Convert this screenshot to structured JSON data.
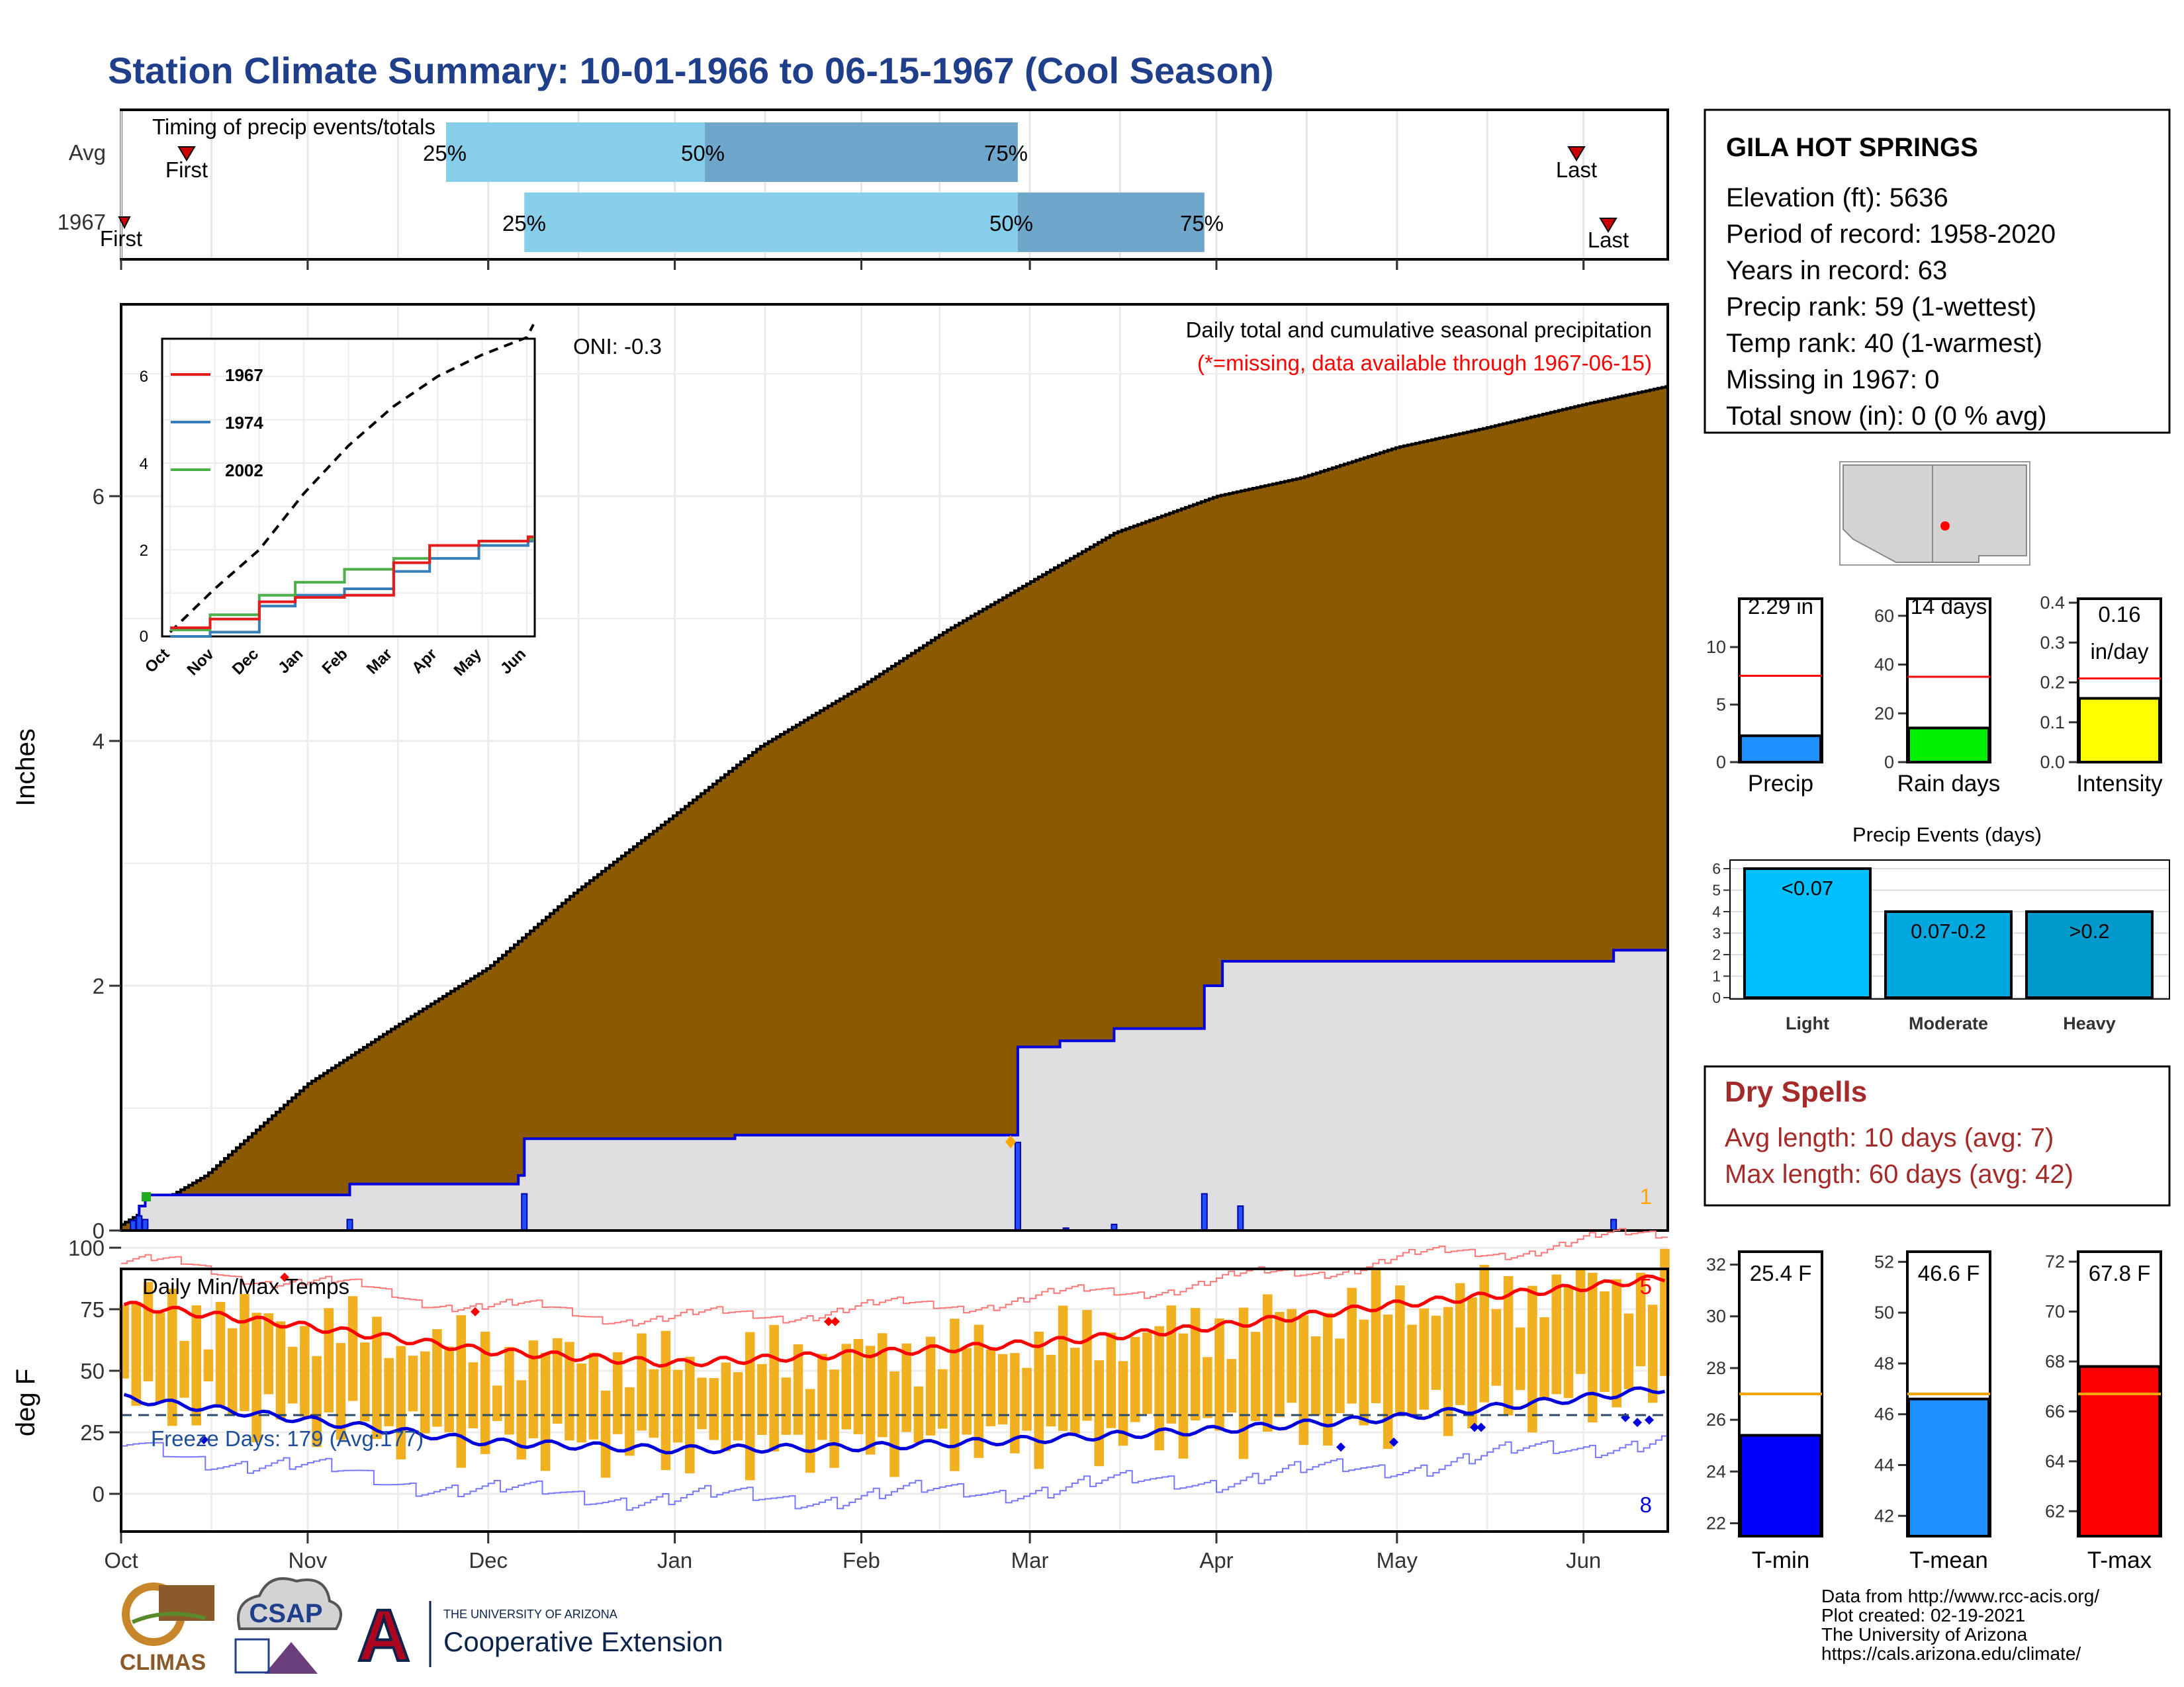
{
  "title": "Station Climate Summary: 10-01-1966 to 06-15-1967 (Cool Season)",
  "colors": {
    "title": "#1f3f8a",
    "precip_fill": "#8b5a00",
    "light_blue": "#87ceeb",
    "steel_blue": "#6fa6cc",
    "bar_orange": "#f0b020",
    "tmax": "#ff0000",
    "tmin": "#0000dd",
    "avg_line": "#ffa500"
  },
  "timing": {
    "label": "Timing of precip events/totals",
    "rows": [
      "Avg",
      "1967"
    ],
    "avg": {
      "first": "First",
      "last": "Last",
      "p25": "25%",
      "p50": "50%",
      "p75": "75%"
    },
    "y1967": {
      "first": "First",
      "last": "Last",
      "p25": "25%",
      "p50": "50%",
      "p75": "75%"
    }
  },
  "months": [
    "Oct",
    "Nov",
    "Dec",
    "Jan",
    "Feb",
    "Mar",
    "Apr",
    "May",
    "Jun"
  ],
  "precip_panel": {
    "ylabel": "Inches",
    "yticks": [
      "0",
      "2",
      "4",
      "6"
    ],
    "title_line1": "Daily total and cumulative seasonal precipitation",
    "title_line2": "(*=missing, data available through 1967-06-15)",
    "oni": "ONI: -0.3",
    "corner_count": "1"
  },
  "inset": {
    "yticks": [
      "0",
      "2",
      "4",
      "6"
    ],
    "months": [
      "Oct",
      "Nov",
      "Dec",
      "Jan",
      "Feb",
      "Mar",
      "Apr",
      "May",
      "Jun"
    ],
    "legend": [
      {
        "label": "1967",
        "color": "#e41a1c"
      },
      {
        "label": "1974",
        "color": "#377eb8"
      },
      {
        "label": "2002",
        "color": "#4daf4a"
      }
    ]
  },
  "temp_panel": {
    "ylabel": "deg F",
    "yticks": [
      "0",
      "25",
      "50",
      "75",
      "100"
    ],
    "title": "Daily Min/Max Temps",
    "freeze": "Freeze Days: 179 (Avg:177)",
    "max_count": "5",
    "min_count": "8"
  },
  "station": {
    "name": "GILA HOT SPRINGS",
    "lines": [
      "Elevation (ft): 5636",
      "Period of record: 1958-2020",
      "Years in record: 63",
      "Precip rank: 59 (1-wettest)",
      "Temp rank: 40 (1-warmest)",
      "Missing in 1967: 0",
      "Total snow (in): 0 (0 % avg)"
    ]
  },
  "mini_bars": [
    {
      "label": "Precip",
      "value_text": "2.29 in",
      "yticks": [
        "0",
        "5",
        "10"
      ],
      "color": "#1e90ff"
    },
    {
      "label": "Rain days",
      "value_text": "14 days",
      "yticks": [
        "0",
        "20",
        "40",
        "60"
      ],
      "color": "#00ee00"
    },
    {
      "label": "Intensity",
      "value_text": "0.16",
      "value_text2": "in/day",
      "yticks": [
        "0.0",
        "0.1",
        "0.2",
        "0.3",
        "0.4"
      ],
      "color": "#ffff00"
    }
  ],
  "events": {
    "title": "Precip Events (days)",
    "yticks": [
      "0",
      "1",
      "2",
      "3",
      "4",
      "5",
      "6"
    ],
    "bars": [
      {
        "label": "Light",
        "value_text": "<0.07",
        "color": "#00bfff"
      },
      {
        "label": "Moderate",
        "value_text": "0.07-0.2",
        "color": "#00a8e0"
      },
      {
        "label": "Heavy",
        "value_text": ">0.2",
        "color": "#0099cc"
      }
    ]
  },
  "dry_spells": {
    "title": "Dry Spells",
    "avg": "Avg length: 10 days (avg: 7)",
    "max": "Max length: 60 days (avg: 42)"
  },
  "temp_bars": [
    {
      "label": "T-min",
      "value_text": "25.4 F",
      "yticks": [
        "22",
        "24",
        "26",
        "28",
        "30",
        "32"
      ],
      "color": "#0000ff"
    },
    {
      "label": "T-mean",
      "value_text": "46.6 F",
      "yticks": [
        "42",
        "44",
        "46",
        "48",
        "50",
        "52"
      ],
      "color": "#1e90ff"
    },
    {
      "label": "T-max",
      "value_text": "67.8 F",
      "yticks": [
        "62",
        "64",
        "66",
        "68",
        "70",
        "72"
      ],
      "color": "#ff0000"
    }
  ],
  "credits": [
    "Data from http://www.rcc-acis.org/",
    "Plot created: 02-19-2021",
    "The University of Arizona",
    "https://cals.arizona.edu/climate/"
  ],
  "logos": {
    "climas": "CLIMAS",
    "csap": "CSAP",
    "ua_small": "THE UNIVERSITY OF ARIZONA",
    "ua_big": "Cooperative Extension"
  },
  "chart_data": [
    {
      "type": "bar",
      "title": "Timing of precip events/totals",
      "categories": [
        "Avg",
        "1967"
      ],
      "x_axis": "date",
      "series": [
        {
          "name": "Avg",
          "first": "1966-10-12",
          "p25": "1966-11-24",
          "p50": "1967-01-06",
          "p75": "1967-02-27",
          "last": "1967-06-01"
        },
        {
          "name": "1967",
          "first": "1966-10-01",
          "p25": "1966-12-07",
          "p50": "1967-02-27",
          "p75": "1967-03-30",
          "last": "1967-06-06"
        }
      ]
    },
    {
      "type": "area",
      "title": "Daily total and cumulative seasonal precipitation",
      "ylabel": "Inches",
      "xlim": [
        "1966-10-01",
        "1967-06-15"
      ],
      "ylim": [
        0,
        7.5
      ],
      "series": [
        {
          "name": "Avg cumulative",
          "x": [
            "1966-10-01",
            "1966-10-15",
            "1966-11-01",
            "1966-11-15",
            "1966-12-01",
            "1966-12-15",
            "1967-01-01",
            "1967-01-15",
            "1967-02-01",
            "1967-02-15",
            "1967-03-01",
            "1967-03-15",
            "1967-04-01",
            "1967-04-15",
            "1967-05-01",
            "1967-05-15",
            "1967-06-01",
            "1967-06-15"
          ],
          "y": [
            0.05,
            0.45,
            1.2,
            1.65,
            2.15,
            2.75,
            3.4,
            3.95,
            4.45,
            4.9,
            5.3,
            5.7,
            6.0,
            6.15,
            6.4,
            6.55,
            6.75,
            6.9
          ]
        },
        {
          "name": "1967 cumulative",
          "x": [
            "1966-10-01",
            "1966-10-03",
            "1966-10-04",
            "1966-10-05",
            "1966-11-08",
            "1966-12-06",
            "1966-12-07",
            "1967-01-11",
            "1967-02-27",
            "1967-03-06",
            "1967-03-15",
            "1967-03-30",
            "1967-04-02",
            "1967-06-06",
            "1967-06-15"
          ],
          "y": [
            0,
            0.08,
            0.2,
            0.29,
            0.38,
            0.45,
            0.75,
            0.78,
            1.5,
            1.55,
            1.65,
            2.0,
            2.2,
            2.29,
            2.29
          ]
        },
        {
          "name": "1967 daily",
          "x": [
            "1966-10-03",
            "1966-10-04",
            "1966-10-05",
            "1966-11-08",
            "1966-12-07",
            "1967-02-27",
            "1967-03-07",
            "1967-03-15",
            "1967-03-30",
            "1967-04-05",
            "1967-06-06"
          ],
          "y": [
            0.08,
            0.12,
            0.09,
            0.09,
            0.3,
            0.72,
            0.02,
            0.05,
            0.3,
            0.2,
            0.09
          ]
        }
      ]
    },
    {
      "type": "line",
      "title": "Daily Min/Max Temps",
      "ylabel": "deg F",
      "ylim": [
        -20,
        105
      ],
      "series": [
        {
          "name": "Avg Tmax",
          "x": [
            "1966-10-01",
            "1966-11-01",
            "1966-12-01",
            "1967-01-01",
            "1967-02-01",
            "1967-03-01",
            "1967-04-01",
            "1967-05-01",
            "1967-06-01",
            "1967-06-15"
          ],
          "y": [
            77,
            68,
            58,
            53,
            57,
            61,
            68,
            77,
            84,
            88
          ]
        },
        {
          "name": "Avg Tmin",
          "x": [
            "1966-10-01",
            "1966-11-01",
            "1966-12-01",
            "1967-01-01",
            "1967-02-01",
            "1967-03-01",
            "1967-04-01",
            "1967-05-01",
            "1967-06-01",
            "1967-06-15"
          ],
          "y": [
            39,
            30,
            21,
            18,
            19,
            22,
            26,
            31,
            39,
            43
          ]
        },
        {
          "name": "Freezing",
          "y": [
            32
          ]
        }
      ]
    },
    {
      "type": "line",
      "title": "Cumulative precipitation comparison",
      "ylim": [
        0,
        7
      ],
      "series": [
        {
          "name": "1967",
          "x": [
            "Oct",
            "Nov",
            "Dec",
            "Jan",
            "Feb",
            "Mar",
            "Apr",
            "May",
            "Jun"
          ],
          "y": [
            0.2,
            0.4,
            0.8,
            0.9,
            0.95,
            1.7,
            2.1,
            2.2,
            2.3
          ]
        },
        {
          "name": "1974",
          "x": [
            "Oct",
            "Nov",
            "Dec",
            "Jan",
            "Feb",
            "Mar",
            "Apr",
            "May",
            "Jun"
          ],
          "y": [
            0.0,
            0.1,
            0.7,
            0.95,
            1.1,
            1.5,
            1.8,
            2.1,
            2.2
          ]
        },
        {
          "name": "2002",
          "x": [
            "Oct",
            "Nov",
            "Dec",
            "Jan",
            "Feb",
            "Mar",
            "Apr",
            "May",
            "Jun"
          ],
          "y": [
            0.15,
            0.5,
            0.95,
            1.25,
            1.55,
            1.8,
            2.1,
            2.2,
            2.25
          ]
        },
        {
          "name": "Avg",
          "x": [
            "Oct",
            "Nov",
            "Dec",
            "Jan",
            "Feb",
            "Mar",
            "Apr",
            "May",
            "Jun"
          ],
          "y": [
            0.1,
            1.1,
            2.0,
            3.3,
            4.4,
            5.3,
            6.0,
            6.5,
            6.9
          ]
        }
      ]
    },
    {
      "type": "bar",
      "categories": [
        "Precip",
        "Rain days",
        "Intensity"
      ],
      "series": [
        {
          "name": "1967",
          "values": [
            2.29,
            14,
            0.16
          ]
        },
        {
          "name": "Avg",
          "values": [
            7.5,
            35,
            0.21
          ]
        }
      ]
    },
    {
      "type": "bar",
      "title": "Precip Events (days)",
      "categories": [
        "Light",
        "Moderate",
        "Heavy"
      ],
      "values": [
        6,
        4,
        4
      ],
      "ylim": [
        0,
        6
      ]
    },
    {
      "type": "bar",
      "categories": [
        "T-min",
        "T-mean",
        "T-max"
      ],
      "series": [
        {
          "name": "1967",
          "values": [
            25.4,
            46.6,
            67.8
          ]
        },
        {
          "name": "Avg",
          "values": [
            27,
            46.8,
            66.7
          ]
        }
      ]
    }
  ]
}
